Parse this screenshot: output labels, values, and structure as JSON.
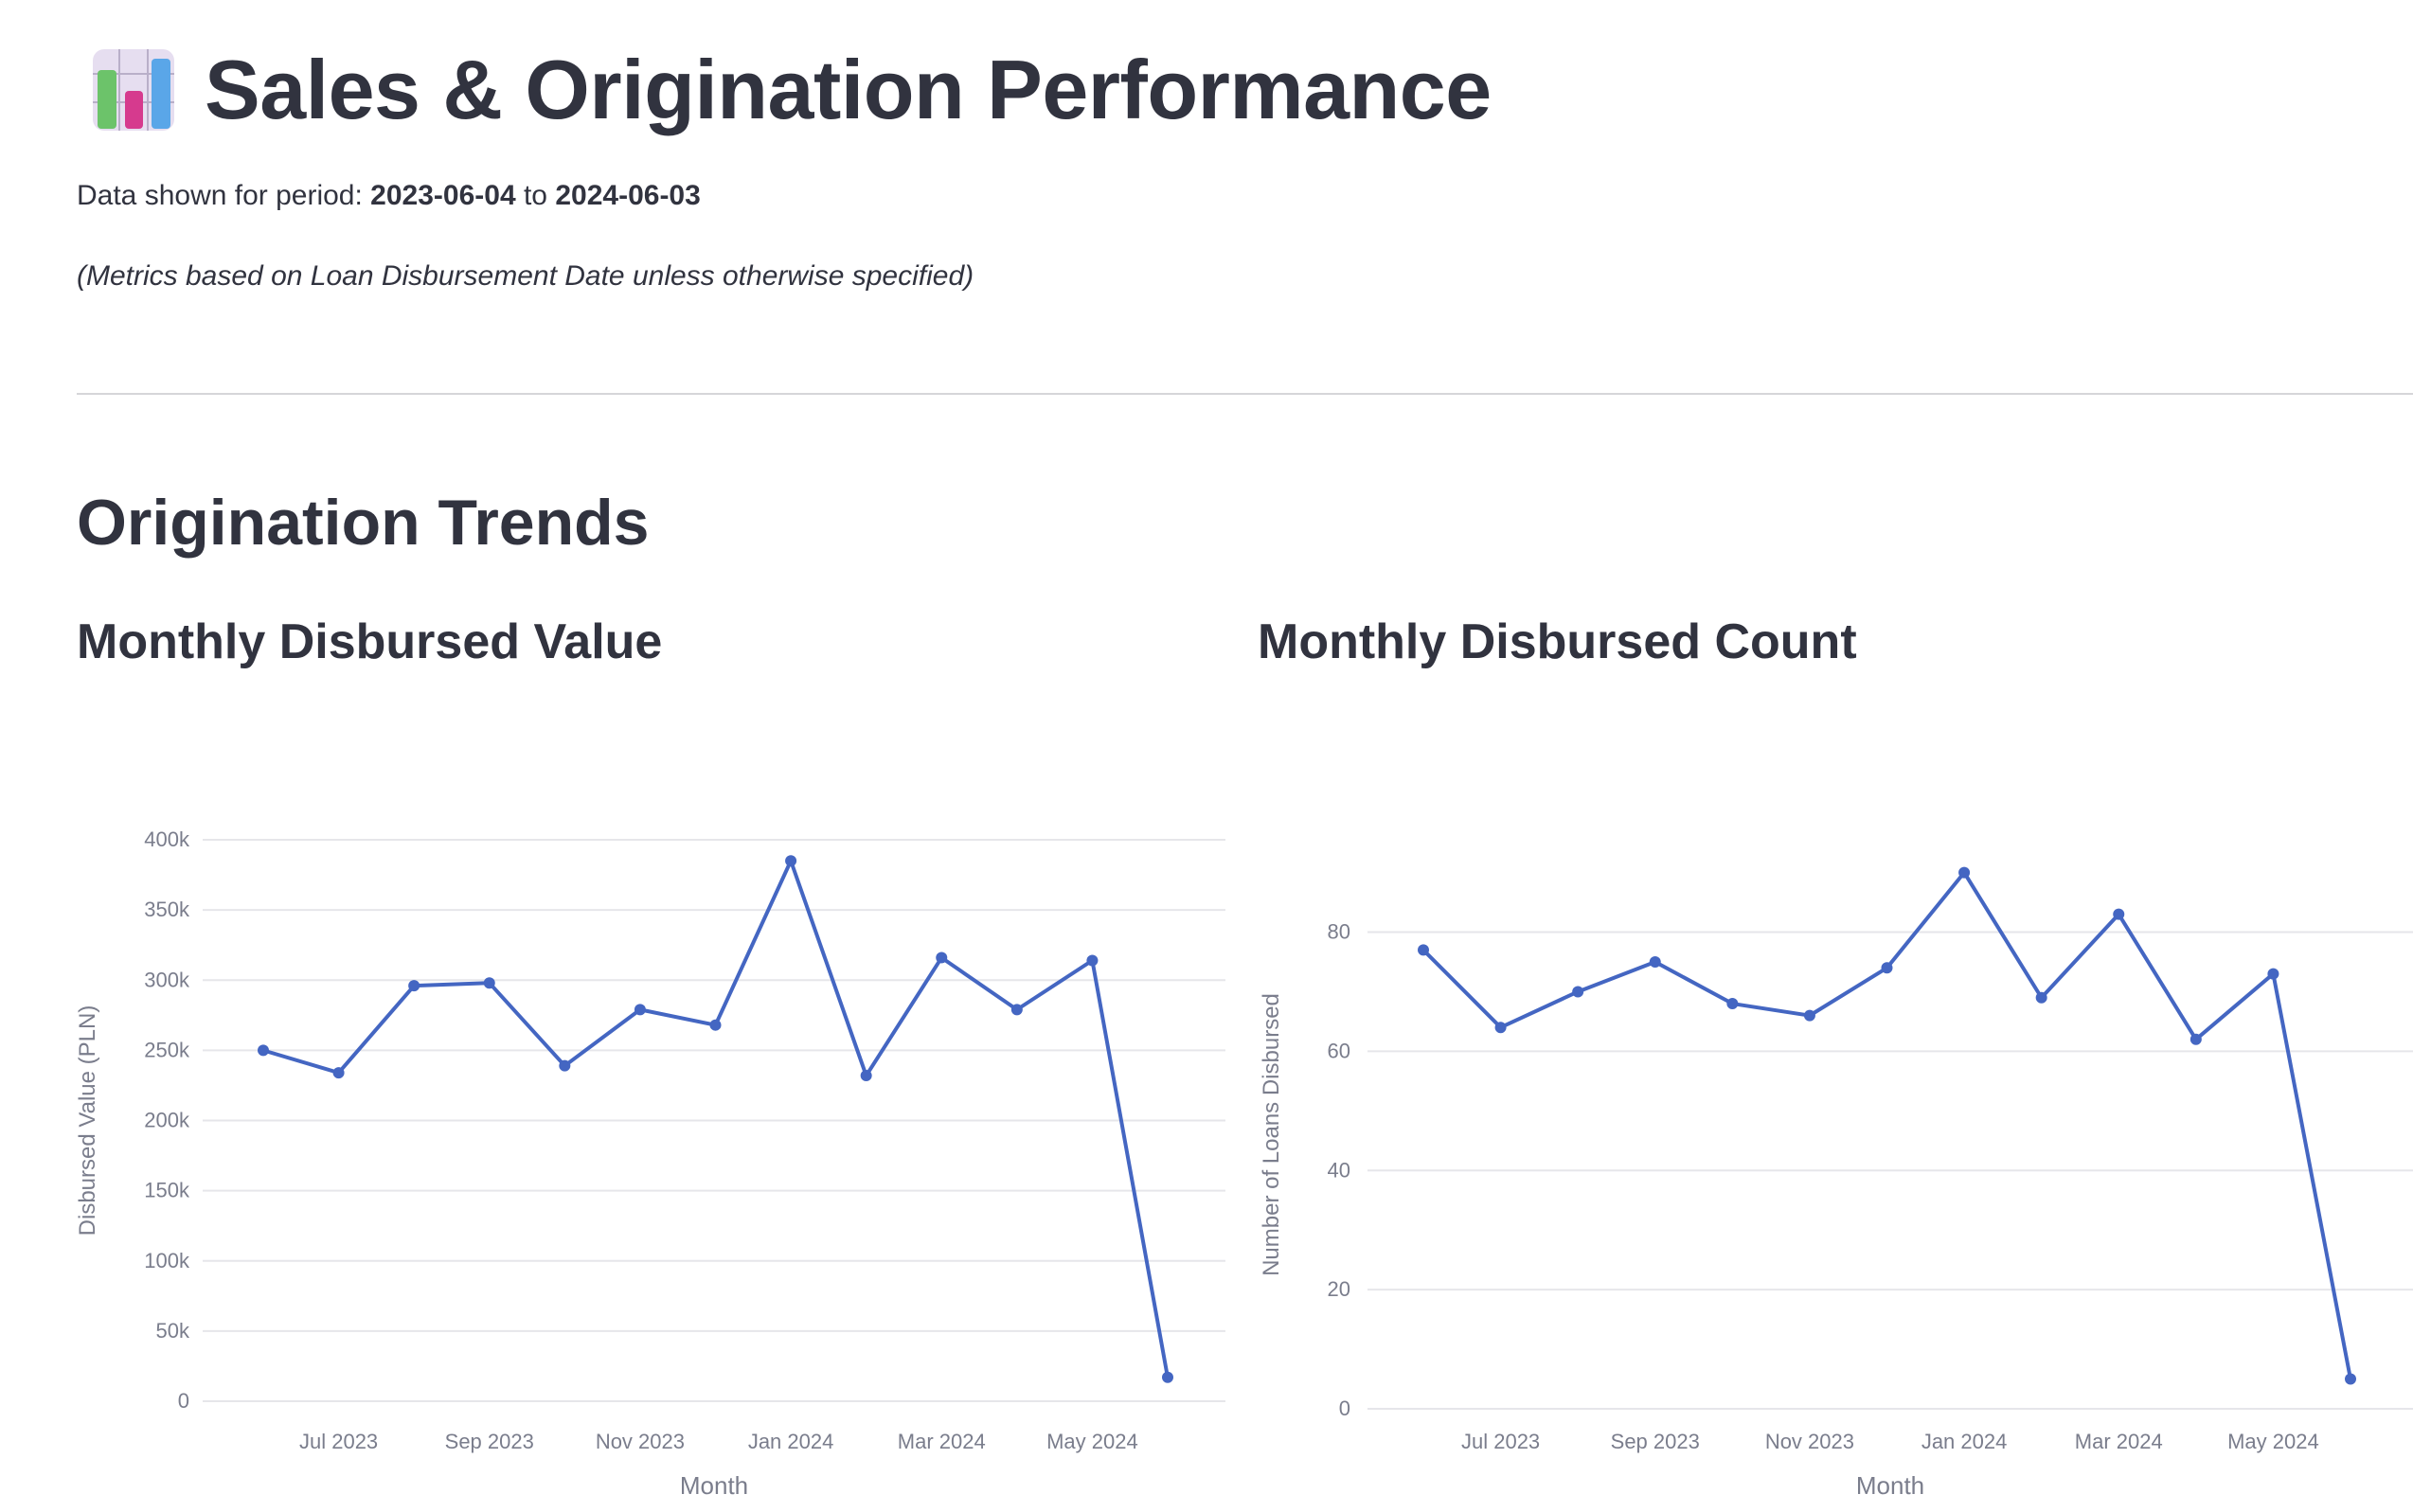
{
  "header": {
    "icon": "bar-chart-icon",
    "title": "Sales & Origination Performance",
    "period_prefix": "Data shown for period: ",
    "period_start": "2023-06-04",
    "period_to": " to ",
    "period_end": "2024-06-03",
    "note": "(Metrics based on Loan Disbursement Date unless otherwise specified)"
  },
  "section": {
    "title": "Origination Trends"
  },
  "colors": {
    "line": "#4466c2",
    "grid": "#e6e6ea",
    "axis_text": "#7a7d8c",
    "title": "#31333f"
  },
  "charts": [
    {
      "title": "Monthly Disbursed Value"
    },
    {
      "title": "Monthly Disbursed Count"
    }
  ],
  "chart_data": [
    {
      "type": "line",
      "title": "Monthly Disbursed Value",
      "xlabel": "Month",
      "ylabel": "Disbursed Value (PLN)",
      "x": [
        "2023-06",
        "2023-07",
        "2023-08",
        "2023-09",
        "2023-10",
        "2023-11",
        "2023-12",
        "2024-01",
        "2024-02",
        "2024-03",
        "2024-04",
        "2024-05",
        "2024-06"
      ],
      "values": [
        250000,
        234000,
        296000,
        298000,
        239000,
        279000,
        268000,
        385000,
        232000,
        316000,
        279000,
        314000,
        17000
      ],
      "ylim": [
        0,
        400000
      ],
      "yticks": [
        0,
        50000,
        100000,
        150000,
        200000,
        250000,
        300000,
        350000,
        400000
      ],
      "ytick_labels": [
        "0",
        "50k",
        "100k",
        "150k",
        "200k",
        "250k",
        "300k",
        "350k",
        "400k"
      ],
      "xtick_labels": [
        "Jul 2023",
        "Sep 2023",
        "Nov 2023",
        "Jan 2024",
        "Mar 2024",
        "May 2024"
      ],
      "grid": true
    },
    {
      "type": "line",
      "title": "Monthly Disbursed Count",
      "xlabel": "Month",
      "ylabel": "Number of Loans Disbursed",
      "x": [
        "2023-06",
        "2023-07",
        "2023-08",
        "2023-09",
        "2023-10",
        "2023-11",
        "2023-12",
        "2024-01",
        "2024-02",
        "2024-03",
        "2024-04",
        "2024-05",
        "2024-06"
      ],
      "values": [
        77,
        64,
        70,
        75,
        68,
        66,
        74,
        90,
        69,
        83,
        62,
        73,
        5
      ],
      "ylim": [
        0,
        92
      ],
      "yticks": [
        0,
        20,
        40,
        60,
        80
      ],
      "ytick_labels": [
        "0",
        "20",
        "40",
        "60",
        "80"
      ],
      "xtick_labels": [
        "Jul 2023",
        "Sep 2023",
        "Nov 2023",
        "Jan 2024",
        "Mar 2024",
        "May 2024"
      ],
      "grid": true
    }
  ]
}
